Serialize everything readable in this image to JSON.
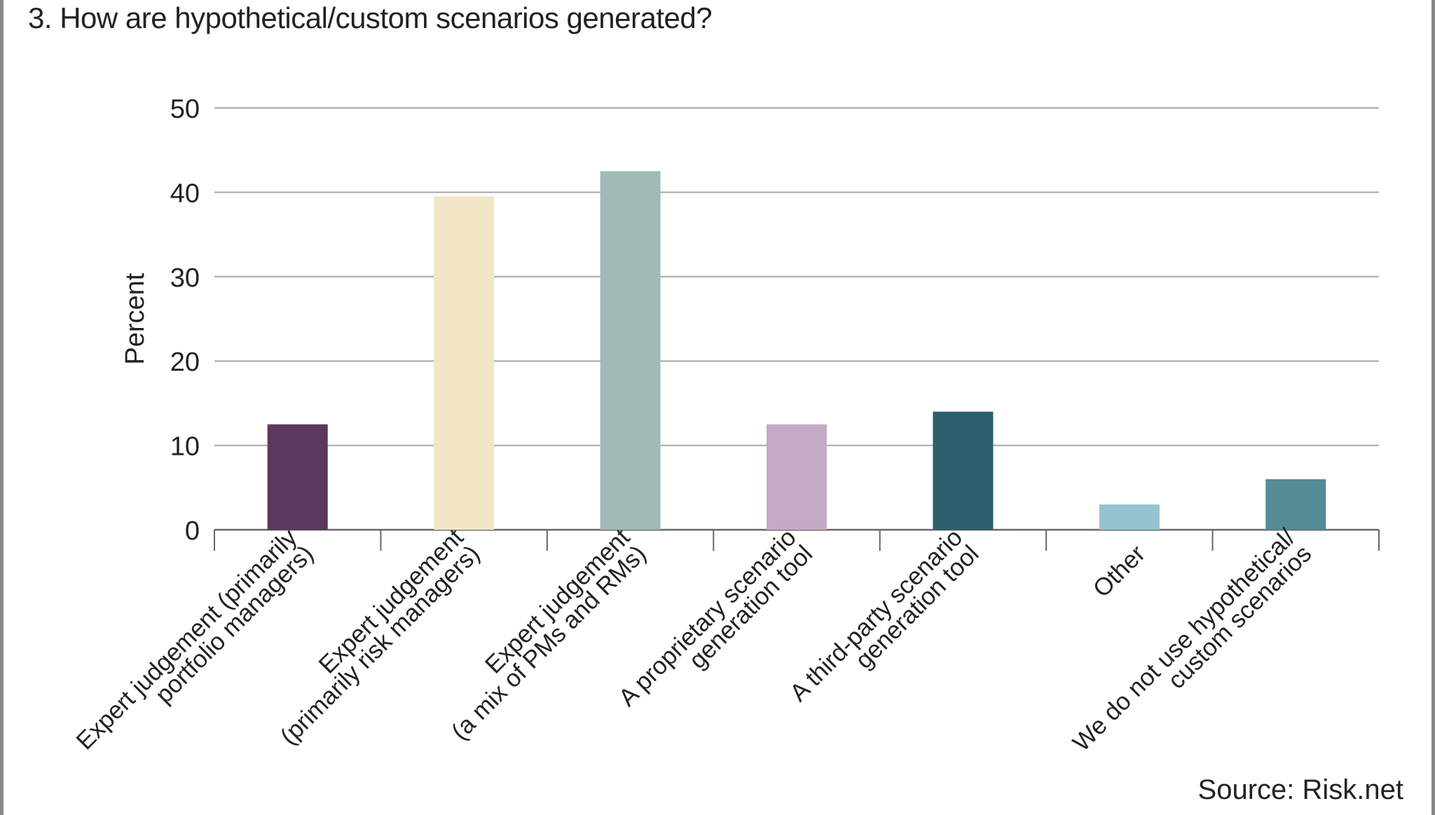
{
  "title": "3. How are hypothetical/custom scenarios generated?",
  "source": "Source: Risk.net",
  "chart_data": {
    "type": "bar",
    "title": "3. How are hypothetical/custom scenarios generated?",
    "ylabel": "Percent",
    "xlabel": "",
    "ylim": [
      0,
      50
    ],
    "yticks": [
      0,
      10,
      20,
      30,
      40,
      50
    ],
    "grid": true,
    "categories": [
      [
        "Expert judgement (primarily",
        "portfolio managers)"
      ],
      [
        "Expert judgement",
        "(primarily risk managers)"
      ],
      [
        "Expert judgement",
        "(a mix of PMs and RMs)"
      ],
      [
        "A proprietary scenario",
        "generation tool"
      ],
      [
        "A third-party scenario",
        "generation tool"
      ],
      [
        "Other"
      ],
      [
        "We do not use hypothetical/",
        "custom scenarios"
      ]
    ],
    "values": [
      12.5,
      39.5,
      42.5,
      12.5,
      14,
      3,
      6
    ],
    "colors": [
      "#5c375e",
      "#f3e6c6",
      "#9fbbb6",
      "#c5aac5",
      "#2c5f6e",
      "#96c3d0",
      "#548b96"
    ]
  }
}
